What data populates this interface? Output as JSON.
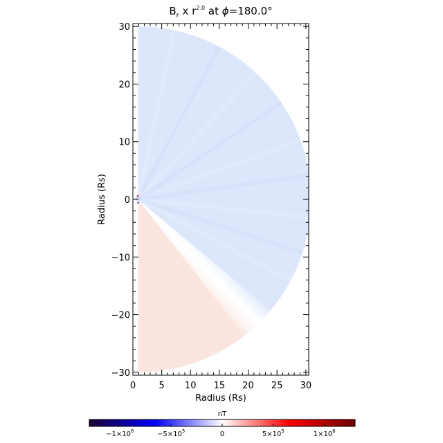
{
  "chart_data": {
    "type": "heatmap",
    "title": {
      "base": "B",
      "base_sub": "r",
      "mid": " x r",
      "mid_sup": "2.0",
      "tail": " at ",
      "phi": "ϕ",
      "phi_value": "=180.0°"
    },
    "xlabel": "Radius (Rs)",
    "ylabel": "Radius (Rs)",
    "xlim": [
      0,
      30.5
    ],
    "ylim": [
      -30.5,
      30.5
    ],
    "xticks": [
      0,
      5,
      10,
      15,
      20,
      25,
      30
    ],
    "yticks": [
      -30,
      -20,
      -10,
      0,
      10,
      20,
      30
    ],
    "xtick_labels": [
      "0",
      "5",
      "10",
      "15",
      "20",
      "25",
      "30"
    ],
    "ytick_labels": [
      "−30",
      "−20",
      "−10",
      "0",
      "10",
      "20",
      "30"
    ],
    "domain_radius": 30,
    "regions": [
      {
        "name": "positive",
        "angle_from_deg": 90,
        "angle_to_deg": -40,
        "value": -120000.0,
        "color": "#dde7fb"
      },
      {
        "name": "negative",
        "angle_from_deg": -52,
        "angle_to_deg": -90,
        "value": 100000.0,
        "color": "#fbe6df"
      }
    ],
    "neutral_sheet_angle_deg": -46,
    "colorbar": {
      "title": "nT",
      "range": [
        -1300000.0,
        1300000.0
      ],
      "ticks": [
        -1000000,
        -500000,
        0,
        500000,
        1000000
      ],
      "tick_labels": [
        {
          "mant": "−1×10",
          "exp": "6"
        },
        {
          "mant": "−5×10",
          "exp": "5"
        },
        {
          "mant": "0",
          "exp": ""
        },
        {
          "mant": "5×10",
          "exp": "5"
        },
        {
          "mant": "1×10",
          "exp": "6"
        }
      ],
      "colors": [
        "#1a0033",
        "#0000ff",
        "#ffffff",
        "#ff0000",
        "#6b0000"
      ]
    }
  }
}
